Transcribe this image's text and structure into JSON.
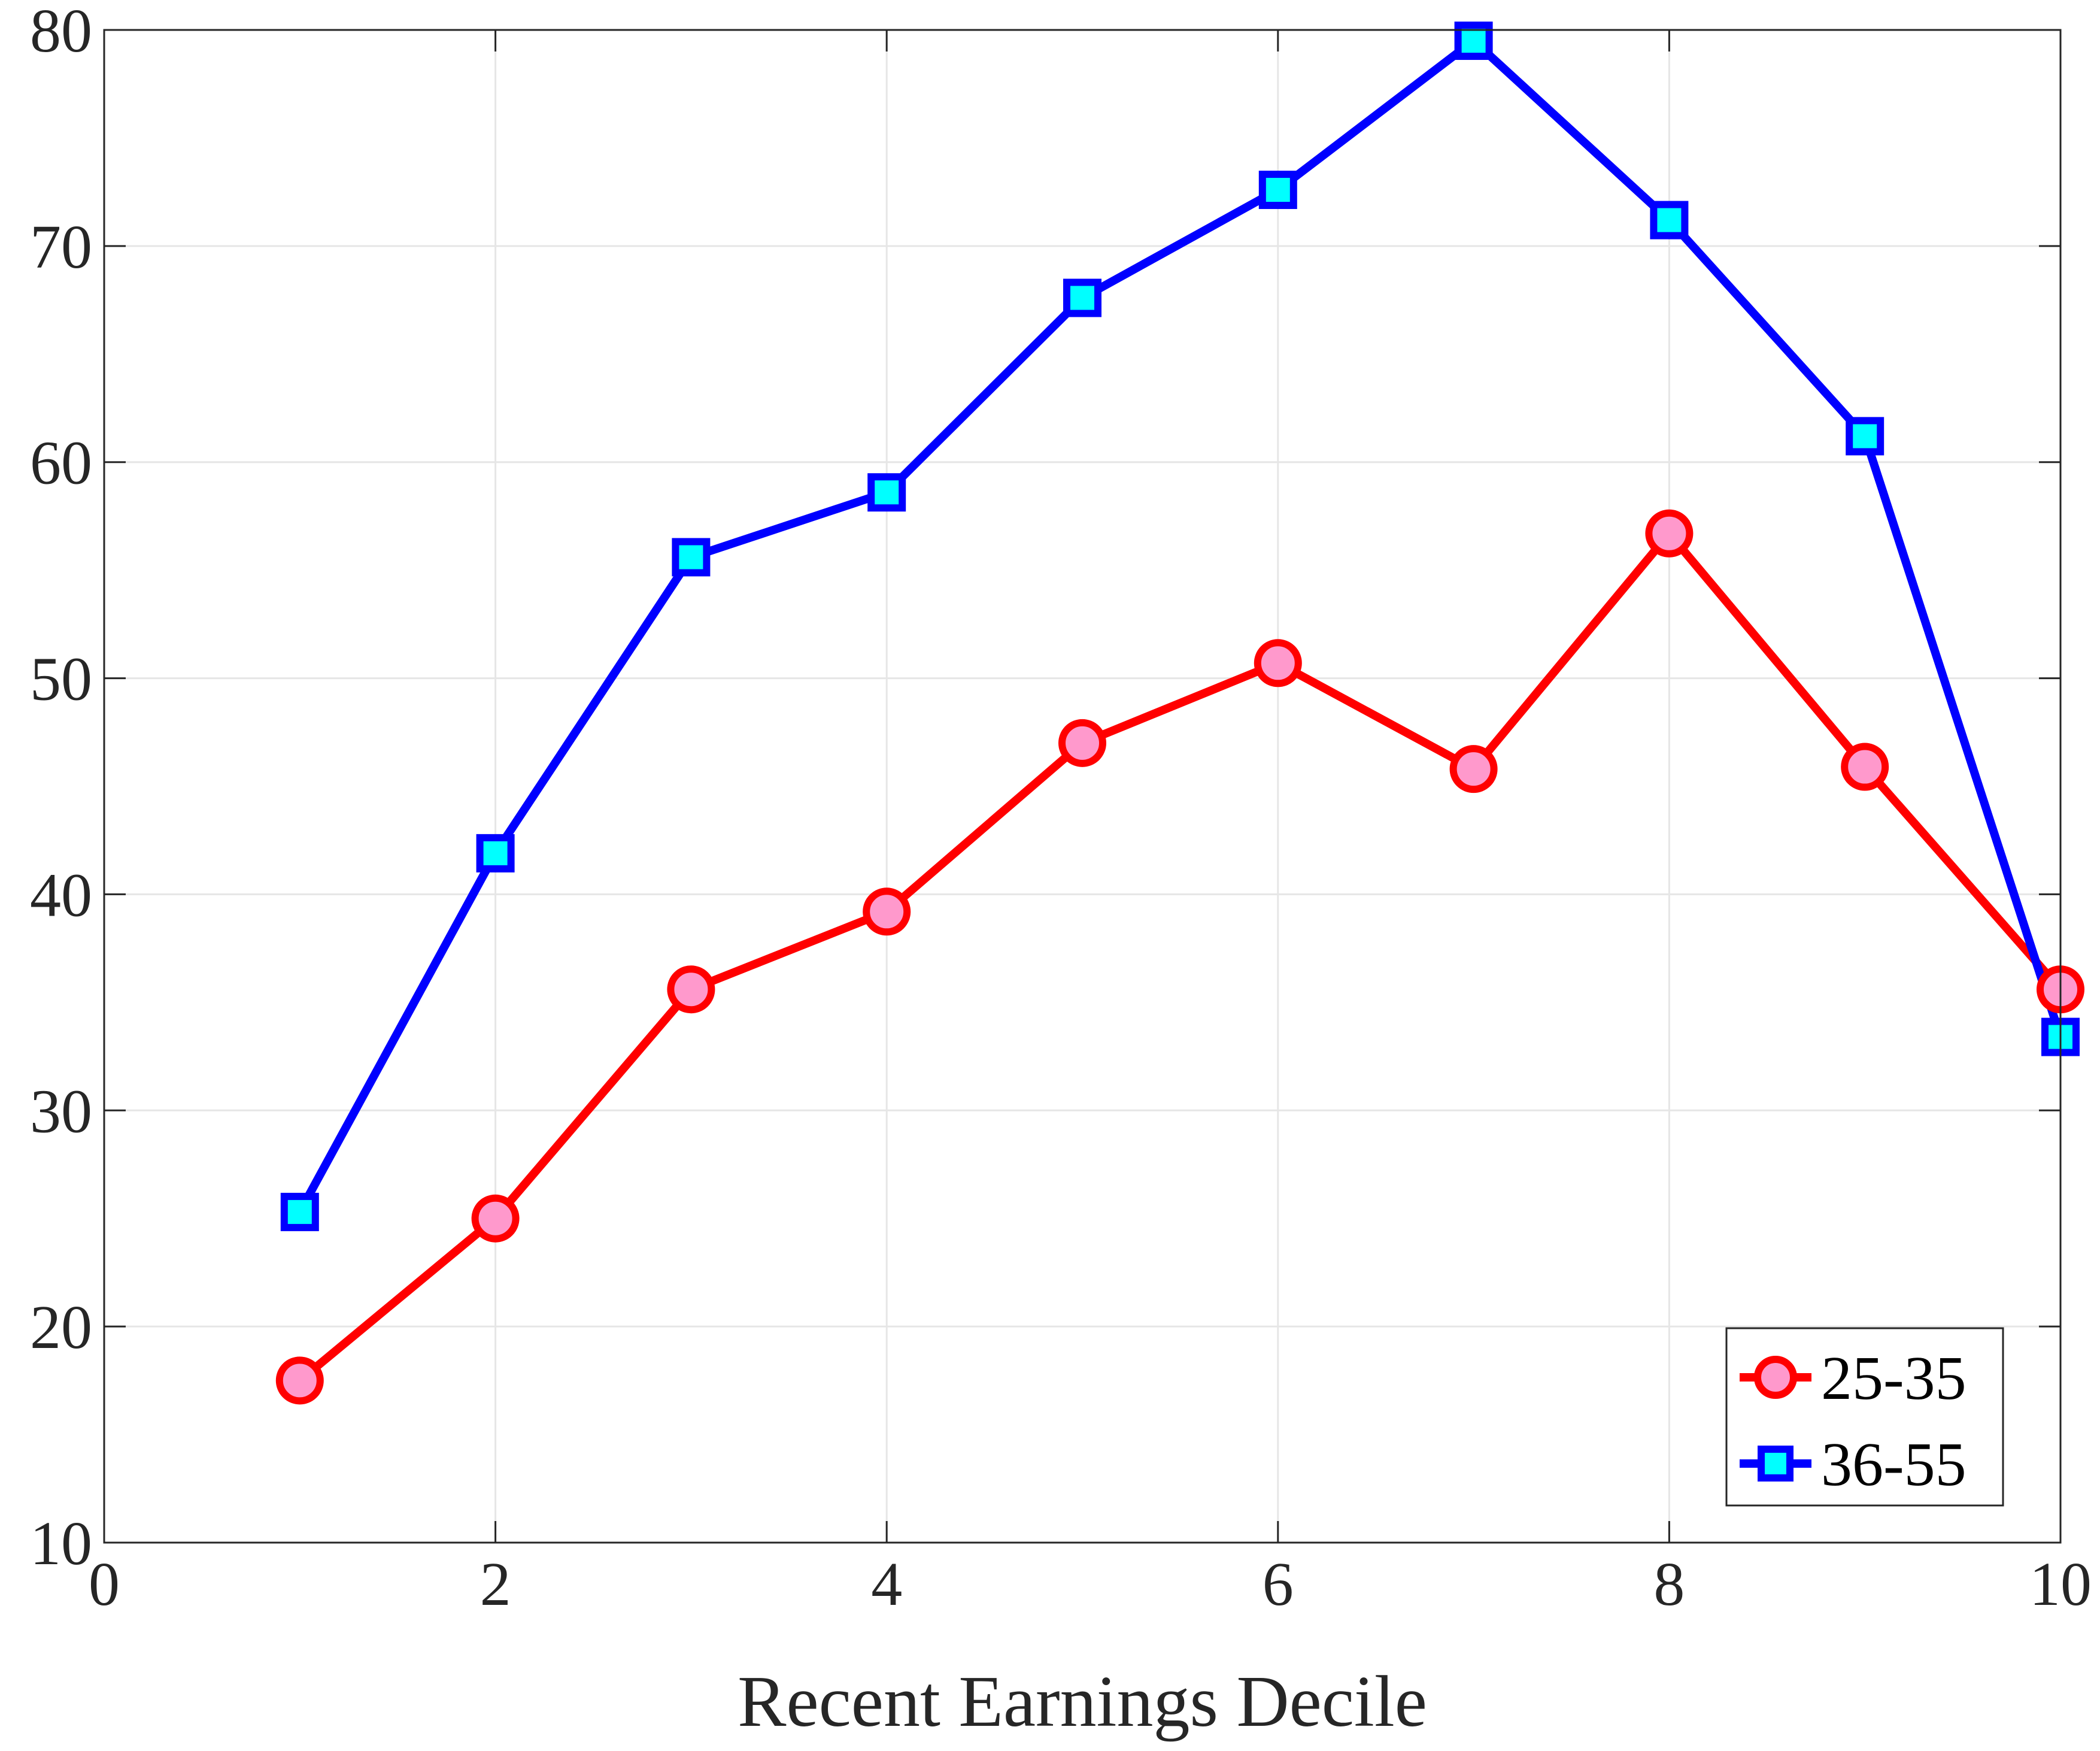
{
  "chart_data": {
    "type": "line",
    "title": "",
    "xlabel": "Recent Earnings Decile",
    "ylabel": "",
    "xlim": [
      0,
      10
    ],
    "ylim": [
      10,
      80
    ],
    "xticks": [
      "0",
      "2",
      "4",
      "6",
      "8",
      "10"
    ],
    "yticks": [
      "10",
      "20",
      "30",
      "40",
      "50",
      "60",
      "70",
      "80"
    ],
    "grid": true,
    "legend_position": "bottom-right",
    "x": [
      1,
      2,
      3,
      4,
      5,
      6,
      7,
      8,
      9,
      10
    ],
    "series": [
      {
        "name": "25-35",
        "values": [
          17.5,
          25.0,
          35.6,
          39.2,
          47.0,
          50.7,
          45.8,
          56.7,
          45.9,
          35.6
        ],
        "line_color": "#ff0000",
        "marker": "circle",
        "marker_fill": "#ff99cc"
      },
      {
        "name": "36-55",
        "values": [
          25.3,
          41.9,
          55.6,
          58.6,
          67.6,
          72.6,
          79.5,
          71.2,
          61.2,
          33.4
        ],
        "line_color": "#0000ff",
        "marker": "square",
        "marker_fill": "#00ffff"
      }
    ]
  }
}
